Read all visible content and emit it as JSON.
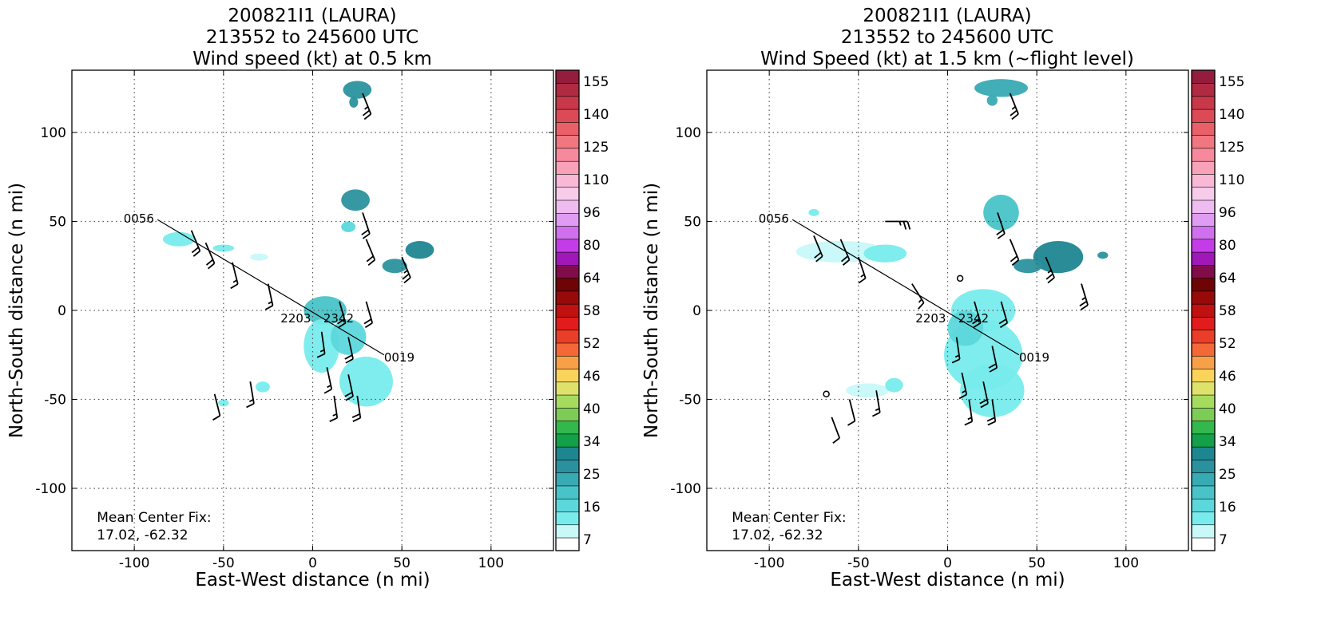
{
  "colors": {
    "track": "#000000",
    "label_gray": "#555555",
    "grid": "#555555",
    "frame": "#000000"
  },
  "colorbar": {
    "labels": [
      "155",
      "140",
      "125",
      "110",
      "96",
      "80",
      "64",
      "58",
      "52",
      "46",
      "40",
      "34",
      "25",
      "16",
      "7"
    ],
    "colors": [
      "#ffffff",
      "#c8f8f8",
      "#78ecec",
      "#5cd8dc",
      "#48c4c8",
      "#38aab4",
      "#2a929e",
      "#1e8690",
      "#12a048",
      "#32b84c",
      "#7ccc56",
      "#a6dc5e",
      "#dee26a",
      "#fad45a",
      "#f8a048",
      "#f46838",
      "#ea3e28",
      "#e21c1c",
      "#c01010",
      "#980a0a",
      "#6e0404",
      "#800c4a",
      "#a018b8",
      "#c43ce8",
      "#d070ee",
      "#e09cf2",
      "#eebcf0",
      "#f6ccea",
      "#f8b8d6",
      "#f8a2ba",
      "#f68a9c",
      "#f07680",
      "#ea6068",
      "#dc4a56",
      "#c83848",
      "#b02a42",
      "#941c3c"
    ]
  },
  "chart_data": [
    {
      "type": "scatter",
      "title": [
        "200821I1 (LAURA)",
        "213552 to 245600 UTC",
        "Wind speed (kt) at 0.5 km"
      ],
      "xlabel": "East-West distance (n mi)",
      "ylabel": "North-South distance (n mi)",
      "xlim": [
        -135,
        135
      ],
      "ylim": [
        -135,
        135
      ],
      "xticks": [
        -100,
        -50,
        0,
        50,
        100
      ],
      "yticks": [
        -100,
        -50,
        0,
        50,
        100
      ],
      "grid": true,
      "annotation": [
        "Mean Center Fix:",
        "17.02, -62.32"
      ],
      "track": {
        "points": [
          [
            -87,
            51
          ],
          [
            40,
            -25
          ]
        ],
        "labels": [
          {
            "text": "0056",
            "x": -106,
            "y": 52
          },
          {
            "text": "0019",
            "x": 40,
            "y": -26
          },
          {
            "text": "2203",
            "x": -18,
            "y": -4
          },
          {
            "text": "2342",
            "x": 6,
            "y": -4
          }
        ]
      },
      "echo_patches": [
        {
          "x": 7,
          "y": 0,
          "rx": 12,
          "ry": 8,
          "level": 4
        },
        {
          "x": 5,
          "y": -20,
          "rx": 10,
          "ry": 15,
          "level": 2
        },
        {
          "x": 30,
          "y": -40,
          "rx": 15,
          "ry": 14,
          "level": 2
        },
        {
          "x": 20,
          "y": -15,
          "rx": 10,
          "ry": 10,
          "level": 3
        },
        {
          "x": 24,
          "y": 62,
          "rx": 8,
          "ry": 6,
          "level": 6
        },
        {
          "x": 60,
          "y": 34,
          "rx": 8,
          "ry": 5,
          "level": 7
        },
        {
          "x": 46,
          "y": 25,
          "rx": 7,
          "ry": 4,
          "level": 6
        },
        {
          "x": 25,
          "y": 124,
          "rx": 8,
          "ry": 5,
          "level": 6
        },
        {
          "x": 23,
          "y": 117,
          "rx": 2.5,
          "ry": 3,
          "level": 6
        },
        {
          "x": -75,
          "y": 40,
          "rx": 9,
          "ry": 4,
          "level": 2
        },
        {
          "x": -50,
          "y": 35,
          "rx": 6,
          "ry": 2,
          "level": 2
        },
        {
          "x": -30,
          "y": 30,
          "rx": 5,
          "ry": 2,
          "level": 1
        },
        {
          "x": -28,
          "y": -43,
          "rx": 4,
          "ry": 3,
          "level": 2
        },
        {
          "x": -50,
          "y": -52,
          "rx": 3,
          "ry": 2,
          "level": 2
        },
        {
          "x": 20,
          "y": 47,
          "rx": 4,
          "ry": 3,
          "level": 3
        }
      ],
      "barbs": [
        {
          "x": -60,
          "y": 38,
          "u": 6,
          "v": -14,
          "kt": 20
        },
        {
          "x": -68,
          "y": 45,
          "u": 5,
          "v": -12,
          "kt": 20
        },
        {
          "x": -45,
          "y": 27,
          "u": 3,
          "v": -12,
          "kt": 15
        },
        {
          "x": -25,
          "y": 15,
          "u": 3,
          "v": -14,
          "kt": 15
        },
        {
          "x": 15,
          "y": 5,
          "u": 4,
          "v": -14,
          "kt": 20
        },
        {
          "x": 30,
          "y": 5,
          "u": 4,
          "v": -14,
          "kt": 20
        },
        {
          "x": 5,
          "y": -12,
          "u": 2,
          "v": -14,
          "kt": 15
        },
        {
          "x": 20,
          "y": -15,
          "u": 3,
          "v": -14,
          "kt": 20
        },
        {
          "x": 8,
          "y": -32,
          "u": 3,
          "v": -14,
          "kt": 15
        },
        {
          "x": 20,
          "y": -36,
          "u": 3,
          "v": -14,
          "kt": 20
        },
        {
          "x": 12,
          "y": -48,
          "u": 2,
          "v": -14,
          "kt": 15
        },
        {
          "x": 25,
          "y": -48,
          "u": 2,
          "v": -14,
          "kt": 20
        },
        {
          "x": -35,
          "y": -40,
          "u": 2,
          "v": -12,
          "kt": 15
        },
        {
          "x": -55,
          "y": -47,
          "u": 3,
          "v": -12,
          "kt": 10
        },
        {
          "x": 28,
          "y": 55,
          "u": 4,
          "v": -12,
          "kt": 20
        },
        {
          "x": 30,
          "y": 40,
          "u": 5,
          "v": -12,
          "kt": 20
        },
        {
          "x": 50,
          "y": 30,
          "u": 5,
          "v": -12,
          "kt": 25
        },
        {
          "x": 28,
          "y": 122,
          "u": 4,
          "v": -10,
          "kt": 25
        }
      ]
    },
    {
      "type": "scatter",
      "title": [
        "200821I1 (LAURA)",
        "213552 to 245600 UTC",
        "Wind Speed (kt) at 1.5 km (~flight level)"
      ],
      "xlabel": "East-West distance (n mi)",
      "ylabel": "North-South distance (n mi)",
      "xlim": [
        -135,
        135
      ],
      "ylim": [
        -135,
        135
      ],
      "xticks": [
        -100,
        -50,
        0,
        50,
        100
      ],
      "yticks": [
        -100,
        -50,
        0,
        50,
        100
      ],
      "grid": true,
      "annotation": [
        "Mean Center Fix:",
        "17.02, -62.32"
      ],
      "track": {
        "points": [
          [
            -87,
            51
          ],
          [
            40,
            -25
          ]
        ],
        "labels": [
          {
            "text": "0056",
            "x": -106,
            "y": 52
          },
          {
            "text": "0019",
            "x": 40,
            "y": -26
          },
          {
            "text": "2203",
            "x": -18,
            "y": -4
          },
          {
            "text": "2342",
            "x": 6,
            "y": -4
          }
        ]
      },
      "echo_patches": [
        {
          "x": 20,
          "y": 0,
          "rx": 18,
          "ry": 12,
          "level": 2
        },
        {
          "x": 20,
          "y": -25,
          "rx": 22,
          "ry": 20,
          "level": 2
        },
        {
          "x": 25,
          "y": -45,
          "rx": 18,
          "ry": 15,
          "level": 2
        },
        {
          "x": 10,
          "y": -10,
          "rx": 10,
          "ry": 10,
          "level": 3
        },
        {
          "x": 30,
          "y": 55,
          "rx": 10,
          "ry": 10,
          "level": 4
        },
        {
          "x": 62,
          "y": 30,
          "rx": 14,
          "ry": 9,
          "level": 7
        },
        {
          "x": 45,
          "y": 25,
          "rx": 8,
          "ry": 4,
          "level": 6
        },
        {
          "x": 30,
          "y": 125,
          "rx": 15,
          "ry": 5,
          "level": 5
        },
        {
          "x": 25,
          "y": 118,
          "rx": 3,
          "ry": 3,
          "level": 5
        },
        {
          "x": 87,
          "y": 31,
          "rx": 3,
          "ry": 2,
          "level": 6
        },
        {
          "x": -60,
          "y": 33,
          "rx": 25,
          "ry": 6,
          "level": 1
        },
        {
          "x": -35,
          "y": 32,
          "rx": 12,
          "ry": 5,
          "level": 2
        },
        {
          "x": -45,
          "y": -45,
          "rx": 12,
          "ry": 4,
          "level": 1
        },
        {
          "x": -30,
          "y": -42,
          "rx": 5,
          "ry": 4,
          "level": 2
        },
        {
          "x": -75,
          "y": 55,
          "rx": 3,
          "ry": 2,
          "level": 2
        }
      ],
      "barbs": [
        {
          "x": -60,
          "y": 40,
          "u": 6,
          "v": -14,
          "kt": 20
        },
        {
          "x": -75,
          "y": 42,
          "u": 5,
          "v": -12,
          "kt": 20
        },
        {
          "x": -50,
          "y": 30,
          "u": 4,
          "v": -12,
          "kt": 15
        },
        {
          "x": -35,
          "y": 50,
          "u": 10,
          "v": 0,
          "kt": 25
        },
        {
          "x": -20,
          "y": 15,
          "u": 5,
          "v": -8,
          "kt": 15
        },
        {
          "x": 15,
          "y": 5,
          "u": 4,
          "v": -14,
          "kt": 20
        },
        {
          "x": 30,
          "y": 5,
          "u": 4,
          "v": -14,
          "kt": 20
        },
        {
          "x": 5,
          "y": -15,
          "u": 2,
          "v": -14,
          "kt": 15
        },
        {
          "x": 25,
          "y": -20,
          "u": 3,
          "v": -14,
          "kt": 20
        },
        {
          "x": 8,
          "y": -35,
          "u": 3,
          "v": -14,
          "kt": 15
        },
        {
          "x": 20,
          "y": -40,
          "u": 3,
          "v": -14,
          "kt": 20
        },
        {
          "x": 12,
          "y": -50,
          "u": 2,
          "v": -14,
          "kt": 15
        },
        {
          "x": 25,
          "y": -50,
          "u": 2,
          "v": -14,
          "kt": 20
        },
        {
          "x": -40,
          "y": -45,
          "u": 2,
          "v": -12,
          "kt": 15
        },
        {
          "x": -55,
          "y": -50,
          "u": 3,
          "v": -12,
          "kt": 10
        },
        {
          "x": -65,
          "y": -60,
          "u": 3,
          "v": -8,
          "kt": 10
        },
        {
          "x": 28,
          "y": 55,
          "u": 4,
          "v": -12,
          "kt": 20
        },
        {
          "x": 35,
          "y": 40,
          "u": 5,
          "v": -12,
          "kt": 20
        },
        {
          "x": 55,
          "y": 30,
          "u": 5,
          "v": -12,
          "kt": 25
        },
        {
          "x": 75,
          "y": 15,
          "u": 3,
          "v": -10,
          "kt": 25
        },
        {
          "x": 35,
          "y": 122,
          "u": 4,
          "v": -10,
          "kt": 25
        }
      ],
      "calm": [
        {
          "x": 7,
          "y": 18
        },
        {
          "x": -68,
          "y": -47
        }
      ]
    }
  ]
}
